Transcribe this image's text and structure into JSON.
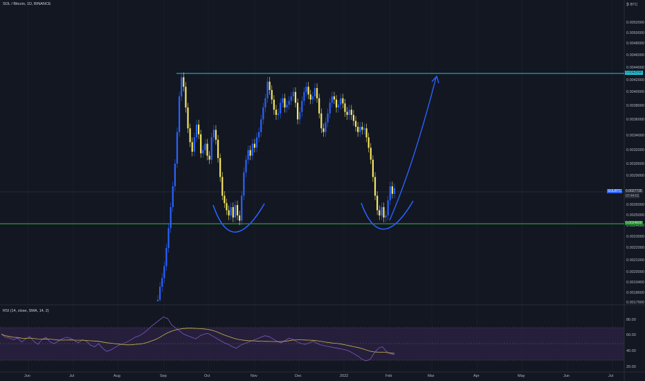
{
  "header": {
    "symbol_line": "SOL / Bitcoin, 1D, BINANCE",
    "unit_label": "₿ BTC"
  },
  "indicator": {
    "label": "RSI (14, close, SMA, 14, 2)",
    "levels": [
      "80.00",
      "60.00",
      "40.00",
      "20.00"
    ],
    "upper_band": 70,
    "lower_band": 30
  },
  "colors": {
    "background": "#131722",
    "candle_up": "#2962ff",
    "candle_down": "#f5e663",
    "resistance_line": "#26c6da",
    "support_line": "#26a69a",
    "drawing": "#2962ff",
    "rsi_line": "#7e57c2",
    "rsi_ma": "#f5e663"
  },
  "chart_data": {
    "type": "candlestick",
    "symbol": "SOLBTC",
    "y_ticks": [
      "0.0052000",
      "0.0050000",
      "0.0048000",
      "0.0046000",
      "0.0044000",
      "0.0042000",
      "0.0040000",
      "0.0038000",
      "0.0036000",
      "0.0034000",
      "0.0032000",
      "0.0030500",
      "0.0029000",
      "0.0026000",
      "0.0025000",
      "0.0024000",
      "0.0023000",
      "0.0022000",
      "0.0021000",
      "0.0020000",
      "0.0019400",
      "0.0018600",
      "0.0017900"
    ],
    "x_ticks": [
      "Jun",
      "Jul",
      "Aug",
      "Sep",
      "Oct",
      "Nov",
      "Dec",
      "2022",
      "Feb",
      "Mar",
      "Apr",
      "May",
      "Jun",
      "Jul"
    ],
    "resistance": {
      "value": "0.0042590",
      "label": "0.0042590"
    },
    "support": {
      "value": "0.0024600",
      "label": "0.0024600"
    },
    "last_price": {
      "symbol": "SOLBTC",
      "value": "0.0027735",
      "countdown": "07:44:01"
    },
    "close_series": [
      0.00181,
      0.0019,
      0.00196,
      0.00205,
      0.0022,
      0.00238,
      0.00258,
      0.0028,
      0.00305,
      0.00345,
      0.00395,
      0.00425,
      0.0041,
      0.00378,
      0.0035,
      0.00332,
      0.0032,
      0.00338,
      0.00355,
      0.00342,
      0.00318,
      0.00322,
      0.0033,
      0.00315,
      0.0031,
      0.00338,
      0.00348,
      0.00335,
      0.00312,
      0.0029,
      0.0027,
      0.00262,
      0.00255,
      0.0025,
      0.00258,
      0.00248,
      0.0026,
      0.0025,
      0.00245,
      0.0027,
      0.00295,
      0.0031,
      0.00322,
      0.00315,
      0.0033,
      0.00325,
      0.00338,
      0.00345,
      0.00362,
      0.00378,
      0.00392,
      0.00418,
      0.00405,
      0.0039,
      0.00375,
      0.00368,
      0.0037,
      0.00385,
      0.00392,
      0.00378,
      0.00382,
      0.00388,
      0.00395,
      0.00402,
      0.00385,
      0.00362,
      0.00372,
      0.00388,
      0.00402,
      0.0041,
      0.00398,
      0.0039,
      0.00395,
      0.00408,
      0.00392,
      0.0037,
      0.0035,
      0.00345,
      0.00358,
      0.0037,
      0.00385,
      0.00395,
      0.0039,
      0.00378,
      0.00382,
      0.00392,
      0.00384,
      0.00372,
      0.00368,
      0.00375,
      0.00368,
      0.0036,
      0.00352,
      0.00345,
      0.00352,
      0.00348,
      0.0035,
      0.00338,
      0.00325,
      0.0031,
      0.0029,
      0.0027,
      0.00255,
      0.0025,
      0.00258,
      0.00248,
      0.0025,
      0.00265,
      0.0028,
      0.00272,
      0.00278
    ],
    "rsi_values": [
      62,
      58,
      57,
      55,
      57,
      52,
      56,
      59,
      53,
      49,
      55,
      58,
      52,
      50,
      53,
      56,
      58,
      57,
      54,
      51,
      55,
      53,
      48,
      46,
      50,
      44,
      40,
      42,
      45,
      48,
      50,
      52,
      55,
      58,
      60,
      63,
      67,
      72,
      76,
      80,
      84,
      82,
      74,
      70,
      66,
      62,
      60,
      58,
      56,
      60,
      62,
      63,
      60,
      57,
      54,
      51,
      49,
      46,
      44,
      48,
      50,
      52,
      54,
      56,
      58,
      60,
      59,
      56,
      53,
      51,
      54,
      57,
      55,
      52,
      50,
      49,
      51,
      53,
      50,
      48,
      47,
      46,
      45,
      44,
      43,
      42,
      40,
      37,
      34,
      30,
      28,
      30,
      38,
      44,
      46,
      40,
      37,
      36
    ]
  }
}
